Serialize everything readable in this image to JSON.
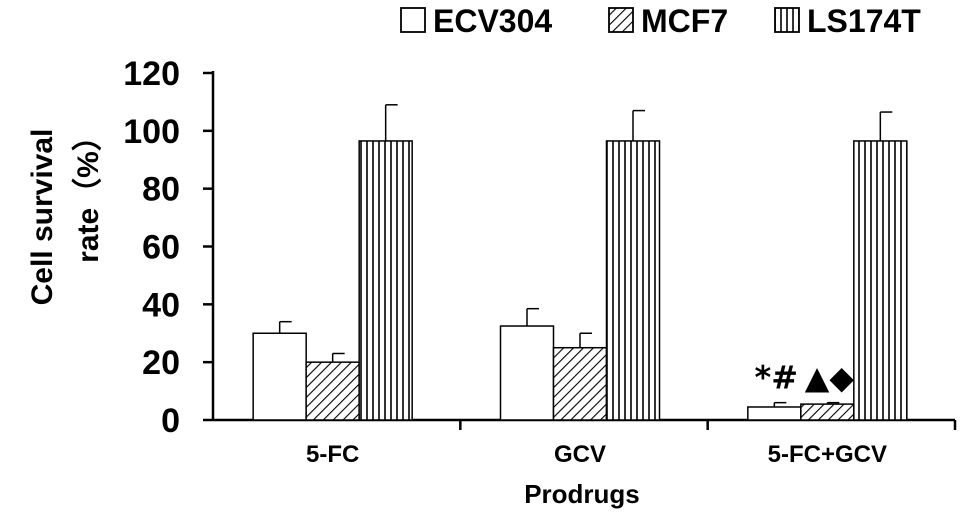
{
  "chart_data": {
    "type": "bar",
    "title": "",
    "xlabel": "Prodrugs",
    "ylabel_line1": "Cell survival",
    "ylabel_line2": "rate（%）",
    "categories": [
      "5-FC",
      "GCV",
      "5-FC+GCV"
    ],
    "ylim": [
      0,
      120
    ],
    "yticks": [
      0,
      20,
      40,
      60,
      80,
      100,
      120
    ],
    "grid": false,
    "legend_position": "top-right",
    "series": [
      {
        "name": "ECV304",
        "values": [
          30,
          32.5,
          4.5
        ],
        "errors": [
          4,
          6,
          1.5
        ],
        "fill": "open"
      },
      {
        "name": "MCF7",
        "values": [
          20,
          25,
          5.5
        ],
        "errors": [
          3,
          5,
          0.5
        ],
        "fill": "diagonal-hatch"
      },
      {
        "name": "LS174T",
        "values": [
          96.5,
          96.5,
          96.5
        ],
        "errors": [
          12.5,
          10.5,
          10
        ],
        "fill": "vertical-hatch"
      }
    ],
    "annotations": [
      {
        "category": "5-FC+GCV",
        "series": "ECV304",
        "text": "*#"
      },
      {
        "category": "5-FC+GCV",
        "series": "MCF7",
        "text": "▲◆"
      }
    ],
    "colors": {
      "axis": "#000000",
      "bar_fill": "#ffffff",
      "hatch": "#000000"
    }
  }
}
